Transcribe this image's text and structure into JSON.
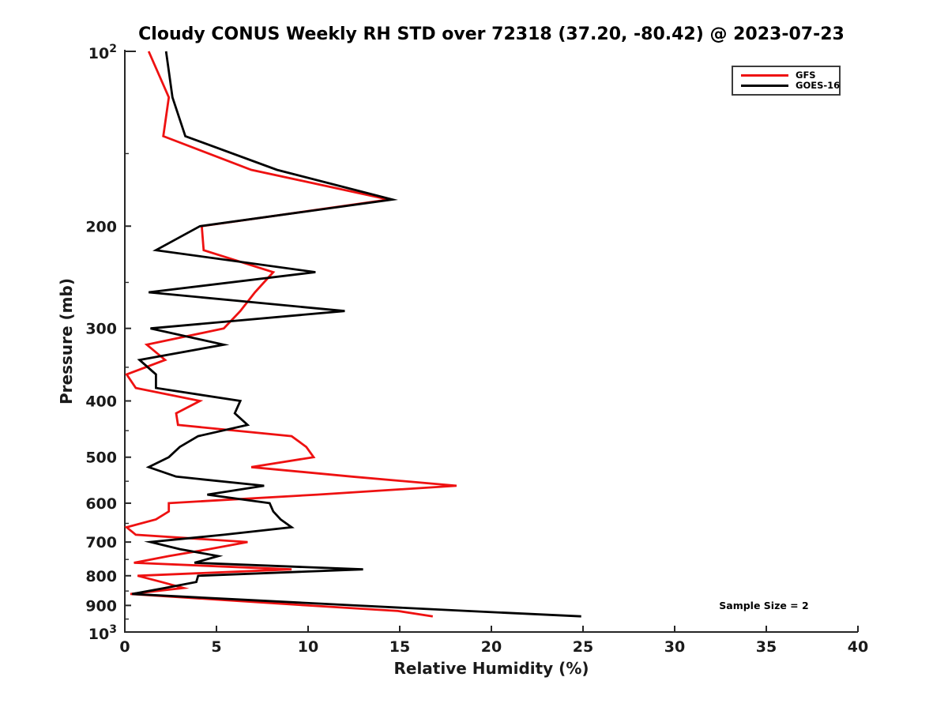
{
  "title": "Cloudy CONUS Weekly RH STD over 72318 (37.20, -80.42) @ 2023-07-23",
  "annotation": "Sample Size = 2",
  "colors": {
    "gfs_red": "#ee1111",
    "goes_black": "#000000",
    "axis": "#262626",
    "background": "#ffffff"
  },
  "chart_data": {
    "type": "line",
    "title": "Cloudy CONUS Weekly RH STD over 72318 (37.20, -80.42) @ 2023-07-23",
    "xlabel": "Relative Humidity (%)",
    "ylabel": "Pressure (mb)",
    "xlim": [
      0,
      40
    ],
    "x_ticks": [
      0,
      5,
      10,
      15,
      20,
      25,
      30,
      35,
      40
    ],
    "ylim": [
      100,
      1000
    ],
    "y_scale": "log",
    "y_axis_inverted_downward": true,
    "y_ticks": [
      {
        "p": 100,
        "label": "10^2"
      },
      {
        "p": 200,
        "label": "200"
      },
      {
        "p": 300,
        "label": "300"
      },
      {
        "p": 400,
        "label": "400"
      },
      {
        "p": 500,
        "label": "500"
      },
      {
        "p": 600,
        "label": "600"
      },
      {
        "p": 700,
        "label": "700"
      },
      {
        "p": 800,
        "label": "800"
      },
      {
        "p": 900,
        "label": "900"
      },
      {
        "p": 1000,
        "label": "10^3"
      }
    ],
    "y_minor_ticks": [
      150,
      250,
      350,
      450,
      550,
      650,
      750,
      850,
      950
    ],
    "grid": false,
    "legend_position": "upper right",
    "pressure_levels": [
      100,
      120,
      140,
      160,
      180,
      200,
      220,
      240,
      260,
      280,
      300,
      320,
      340,
      360,
      380,
      400,
      420,
      440,
      460,
      480,
      500,
      520,
      540,
      560,
      580,
      600,
      620,
      640,
      660,
      680,
      700,
      720,
      740,
      760,
      780,
      800,
      820,
      840,
      860,
      880,
      900,
      920,
      940
    ],
    "series": [
      {
        "name": "GFS",
        "color": "#ee1111",
        "values": [
          1.3,
          2.4,
          2.1,
          6.9,
          14.4,
          4.2,
          4.3,
          8.1,
          7.1,
          6.3,
          5.4,
          1.2,
          2.2,
          0.1,
          0.6,
          4.1,
          2.8,
          2.9,
          9.1,
          9.9,
          10.3,
          6.9,
          12.4,
          18.1,
          10.5,
          2.4,
          2.4,
          1.7,
          0.1,
          0.6,
          6.7,
          4.6,
          2.4,
          0.5,
          9.1,
          0.7,
          2.0,
          3.2,
          0.3,
          5.2,
          10.0,
          14.9,
          16.8
        ]
      },
      {
        "name": "GOES-16",
        "color": "#000000",
        "values": [
          2.25,
          2.6,
          3.3,
          8.3,
          14.6,
          4.1,
          1.7,
          10.4,
          1.3,
          12.0,
          1.4,
          5.4,
          0.8,
          1.7,
          1.7,
          6.3,
          6.0,
          6.7,
          4.0,
          3.0,
          2.4,
          1.3,
          2.8,
          7.6,
          4.5,
          7.9,
          8.1,
          8.5,
          9.1,
          5.4,
          1.4,
          3.0,
          5.1,
          3.8,
          13.0,
          4.0,
          3.9,
          2.2,
          0.4,
          6.5,
          12.6,
          18.7,
          24.9
        ]
      }
    ],
    "annotation": "Sample Size = 2"
  }
}
